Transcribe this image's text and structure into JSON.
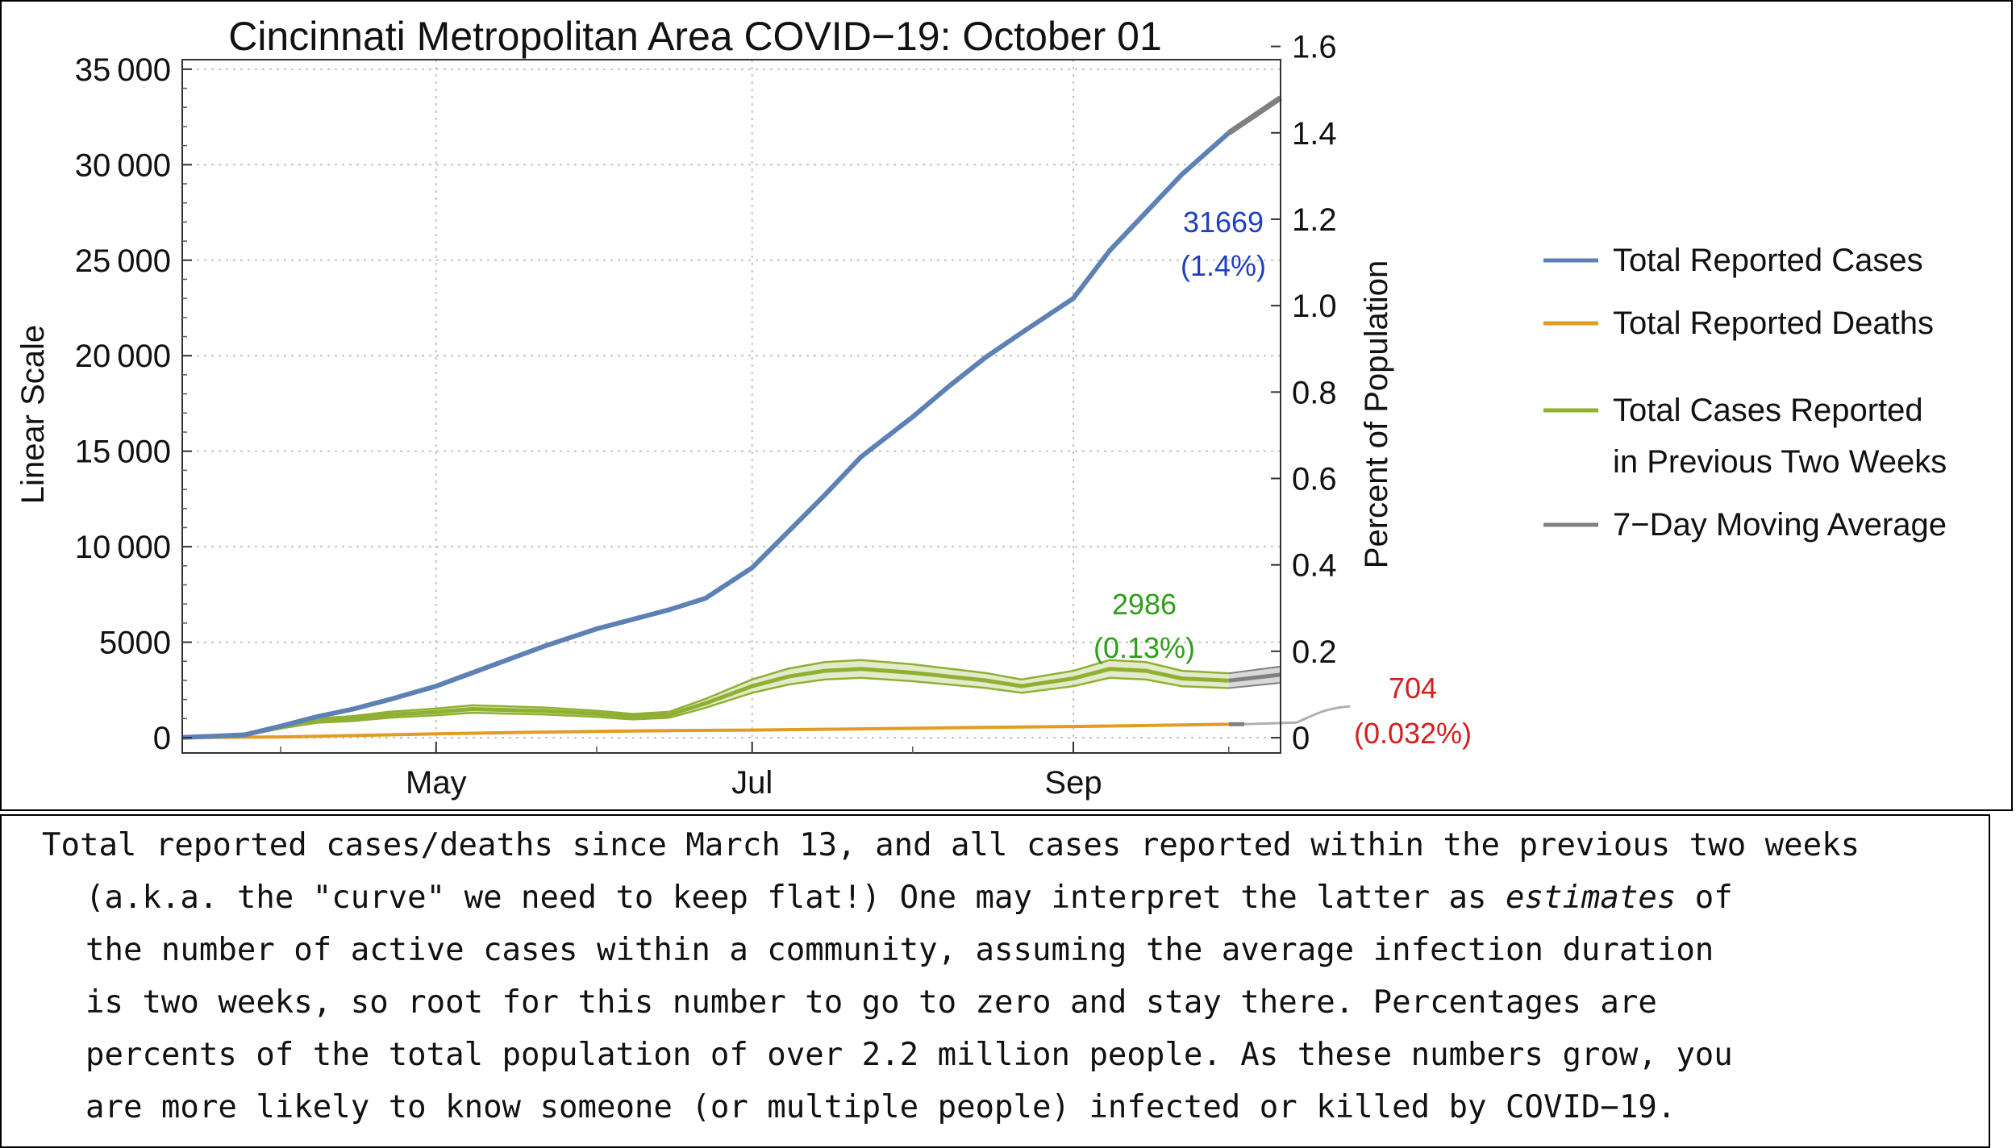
{
  "chart_data": {
    "type": "line",
    "title": "Cincinnati Metropolitan Area COVID−19: October 01",
    "ylabel_left": "Linear Scale",
    "ylabel_right": "Percent of Population",
    "x_tick_labels": [
      {
        "date": "2020-05-01",
        "label": "May"
      },
      {
        "date": "2020-07-01",
        "label": "Jul"
      },
      {
        "date": "2020-09-01",
        "label": "Sep"
      }
    ],
    "xlim": [
      "2020-03-13",
      "2020-10-11"
    ],
    "ylim_left": [
      -800,
      35500
    ],
    "yticks_left": [
      0,
      5000,
      10000,
      15000,
      20000,
      25000,
      30000,
      35000
    ],
    "ytick_labels_left": [
      "0",
      "5000",
      "10 000",
      "15 000",
      "20 000",
      "25 000",
      "30 000",
      "35 000"
    ],
    "yticks_right_percent": [
      0,
      0.2,
      0.4,
      0.6,
      0.8,
      1.0,
      1.2,
      1.4,
      1.6
    ],
    "ytick_labels_right": [
      "0",
      "0.2",
      "0.4",
      "0.6",
      "0.8",
      "1.0",
      "1.2",
      "1.4",
      "1.6"
    ],
    "grid": true,
    "legend_position": "right",
    "series": [
      {
        "name": "Total Reported Cases",
        "color": "#5e81b5",
        "points": [
          [
            "2020-03-13",
            10
          ],
          [
            "2020-03-25",
            150
          ],
          [
            "2020-04-01",
            600
          ],
          [
            "2020-04-08",
            1100
          ],
          [
            "2020-04-15",
            1500
          ],
          [
            "2020-04-22",
            2000
          ],
          [
            "2020-05-01",
            2700
          ],
          [
            "2020-05-08",
            3400
          ],
          [
            "2020-05-15",
            4100
          ],
          [
            "2020-05-22",
            4800
          ],
          [
            "2020-06-01",
            5700
          ],
          [
            "2020-06-08",
            6200
          ],
          [
            "2020-06-15",
            6700
          ],
          [
            "2020-06-22",
            7300
          ],
          [
            "2020-07-01",
            8900
          ],
          [
            "2020-07-08",
            10800
          ],
          [
            "2020-07-15",
            12700
          ],
          [
            "2020-07-22",
            14700
          ],
          [
            "2020-08-01",
            16800
          ],
          [
            "2020-08-08",
            18400
          ],
          [
            "2020-08-15",
            19900
          ],
          [
            "2020-08-22",
            21200
          ],
          [
            "2020-09-01",
            23000
          ],
          [
            "2020-09-08",
            25500
          ],
          [
            "2020-09-15",
            27500
          ],
          [
            "2020-09-22",
            29500
          ],
          [
            "2020-10-01",
            31669
          ]
        ]
      },
      {
        "name": "Total Reported Deaths",
        "color": "#e19c24",
        "points": [
          [
            "2020-03-13",
            0
          ],
          [
            "2020-04-01",
            40
          ],
          [
            "2020-04-15",
            110
          ],
          [
            "2020-05-01",
            200
          ],
          [
            "2020-05-15",
            270
          ],
          [
            "2020-06-01",
            330
          ],
          [
            "2020-06-15",
            370
          ],
          [
            "2020-07-01",
            400
          ],
          [
            "2020-07-15",
            440
          ],
          [
            "2020-08-01",
            490
          ],
          [
            "2020-08-15",
            540
          ],
          [
            "2020-09-01",
            590
          ],
          [
            "2020-09-15",
            640
          ],
          [
            "2020-10-01",
            704
          ]
        ]
      },
      {
        "name": "Total Cases Reported",
        "name_line2": "in Previous Two Weeks",
        "color": "#8fb032",
        "band_halfwidth_fraction": 0.13,
        "points": [
          [
            "2020-03-13",
            10
          ],
          [
            "2020-03-25",
            140
          ],
          [
            "2020-04-01",
            550
          ],
          [
            "2020-04-08",
            900
          ],
          [
            "2020-04-15",
            1000
          ],
          [
            "2020-04-22",
            1200
          ],
          [
            "2020-05-01",
            1350
          ],
          [
            "2020-05-08",
            1500
          ],
          [
            "2020-05-15",
            1450
          ],
          [
            "2020-05-22",
            1400
          ],
          [
            "2020-06-01",
            1250
          ],
          [
            "2020-06-08",
            1100
          ],
          [
            "2020-06-15",
            1200
          ],
          [
            "2020-06-22",
            1800
          ],
          [
            "2020-07-01",
            2700
          ],
          [
            "2020-07-08",
            3200
          ],
          [
            "2020-07-15",
            3500
          ],
          [
            "2020-07-22",
            3600
          ],
          [
            "2020-08-01",
            3400
          ],
          [
            "2020-08-08",
            3200
          ],
          [
            "2020-08-15",
            3000
          ],
          [
            "2020-08-22",
            2700
          ],
          [
            "2020-09-01",
            3100
          ],
          [
            "2020-09-08",
            3600
          ],
          [
            "2020-09-15",
            3500
          ],
          [
            "2020-09-22",
            3100
          ],
          [
            "2020-10-01",
            2986
          ]
        ]
      },
      {
        "name": "7−Day Moving Average",
        "color": "#808080",
        "projections": {
          "cases": [
            [
              "2020-10-01",
              31669
            ],
            [
              "2020-10-11",
              33500
            ]
          ],
          "two_week": [
            [
              "2020-10-01",
              2986
            ],
            [
              "2020-10-11",
              3300
            ]
          ],
          "deaths": [
            [
              "2020-10-01",
              704
            ],
            [
              "2020-10-04",
              710
            ]
          ]
        }
      }
    ],
    "annotations": [
      {
        "text": "31669",
        "text2": "(1.4%)",
        "color": "#1f3fbf"
      },
      {
        "text": "2986",
        "text2": "(0.13%)",
        "color": "#2e9e1b"
      },
      {
        "text": "704",
        "text2": "(0.032%)",
        "color": "#d21f1f"
      }
    ]
  },
  "caption": {
    "line1": "Total reported cases/deaths since March 13, and all cases reported within the previous two weeks",
    "line2_a": "(a.k.a. the \"curve\" we need to keep flat!) One may interpret the latter as ",
    "line2_em": "estimates",
    "line2_b": " of",
    "line3": "the number of active cases within a community, assuming the average infection duration",
    "line4": "is two weeks, so root for this number to go to zero and stay there. Percentages are",
    "line5": "percents of the total population of over 2.2 million people. As these numbers grow, you",
    "line6": "are more likely to know someone (or multiple people) infected or killed by COVID−19."
  }
}
